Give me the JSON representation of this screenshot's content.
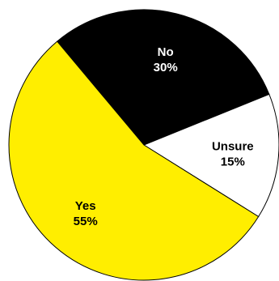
{
  "chart_data": {
    "type": "pie",
    "title": "",
    "slices": [
      {
        "label": "No",
        "value": 30,
        "display": "30%",
        "color": "#000000",
        "text_color": "#ffffff"
      },
      {
        "label": "Unsure",
        "value": 15,
        "display": "15%",
        "color": "#ffffff",
        "text_color": "#000000"
      },
      {
        "label": "Yes",
        "value": 55,
        "display": "55%",
        "color": "#ffee00",
        "text_color": "#000000"
      }
    ],
    "start_angle_deg": -130,
    "direction": "clockwise",
    "legend": "none",
    "border_color": "#000000"
  }
}
